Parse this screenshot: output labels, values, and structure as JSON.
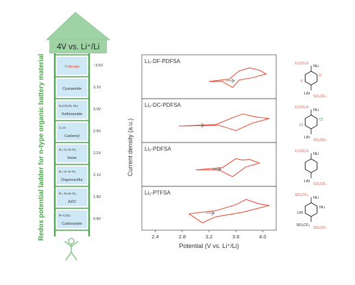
{
  "ladder": {
    "title": "4V vs. Li⁺/Li",
    "side_label": "Redox potential ladder for n-type organic battery material",
    "rungs": [
      {
        "name": "Triflimide",
        "potential": "~3.6V",
        "chem": "",
        "highlight": true
      },
      {
        "name": "Cyanamide",
        "potential": "3.1V",
        "chem": "",
        "highlight": false
      },
      {
        "name": "Sulfonamide",
        "potential": "3.0V",
        "chem": "N₂CO₂R₁ NLi",
        "highlight": false
      },
      {
        "name": "Carbonyl",
        "potential": "2.5V",
        "chem": "C=O",
        "highlight": false
      },
      {
        "name": "Imine",
        "potential": "2.2V",
        "chem": "R₁–C=N–R₂",
        "highlight": false
      },
      {
        "name": "Organosulfur",
        "potential": "2.1V",
        "chem": "R₁–S–S–R₂",
        "highlight": false
      },
      {
        "name": "AZO",
        "potential": "1.8V",
        "chem": "R₁–N=N–R₂",
        "highlight": false
      },
      {
        "name": "Carboxylate",
        "potential": "0.8V",
        "chem": "R–COLi",
        "highlight": false
      }
    ]
  },
  "chart": {
    "ylabel": "Current density (a.u.)",
    "xlabel": "Potential (V vs. Li⁺/Li)"
  },
  "chart_data": {
    "type": "line",
    "xlabel": "Potential (V vs. Li⁺/Li)",
    "ylabel": "Current density (a.u.)",
    "xlim": [
      2.2,
      4.2
    ],
    "xticks": [
      2.4,
      2.8,
      3.2,
      3.6,
      4.0
    ],
    "panels": [
      {
        "name": "Li₂-DF-PDFSA",
        "anodic": [
          [
            3.2,
            0.05
          ],
          [
            3.5,
            0.2
          ],
          [
            3.65,
            0.75
          ],
          [
            3.8,
            0.95
          ],
          [
            3.95,
            0.8
          ],
          [
            4.05,
            0.55
          ]
        ],
        "cathodic": [
          [
            4.05,
            0.55
          ],
          [
            3.85,
            0.3
          ],
          [
            3.65,
            0.15
          ],
          [
            3.55,
            -0.35
          ],
          [
            3.4,
            0.05
          ],
          [
            3.2,
            0.05
          ]
        ]
      },
      {
        "name": "Li₂-DC-PDFSA",
        "anodic": [
          [
            2.75,
            0.0
          ],
          [
            3.3,
            0.1
          ],
          [
            3.55,
            0.55
          ],
          [
            3.7,
            0.8
          ],
          [
            3.9,
            0.6
          ],
          [
            4.1,
            0.5
          ]
        ],
        "cathodic": [
          [
            4.1,
            0.5
          ],
          [
            3.85,
            0.2
          ],
          [
            3.6,
            -0.3
          ],
          [
            3.35,
            0.05
          ],
          [
            2.75,
            0.0
          ]
        ]
      },
      {
        "name": "Li₂-PDFSA",
        "anodic": [
          [
            3.0,
            0.0
          ],
          [
            3.4,
            0.15
          ],
          [
            3.6,
            0.75
          ],
          [
            3.7,
            0.65
          ],
          [
            3.8,
            0.7
          ],
          [
            3.95,
            0.45
          ]
        ],
        "cathodic": [
          [
            3.95,
            0.45
          ],
          [
            3.75,
            0.2
          ],
          [
            3.55,
            -0.45
          ],
          [
            3.35,
            0.0
          ],
          [
            3.0,
            0.0
          ]
        ]
      },
      {
        "name": "Li₂-PTFSA",
        "anodic": [
          [
            2.9,
            0.0
          ],
          [
            3.3,
            0.2
          ],
          [
            3.6,
            0.6
          ],
          [
            3.75,
            0.95
          ],
          [
            3.95,
            0.65
          ],
          [
            4.1,
            0.55
          ]
        ],
        "cathodic": [
          [
            4.1,
            0.55
          ],
          [
            3.7,
            0.1
          ],
          [
            3.3,
            -0.2
          ],
          [
            3.1,
            -0.6
          ],
          [
            2.9,
            0.0
          ]
        ]
      }
    ]
  },
  "structures": [
    {
      "name": "structure-df-pdfsa",
      "top": "F₃CO₂S",
      "top_right": "NLi",
      "left": "F",
      "right": "F",
      "bottom": "LiN",
      "bottom_right": "SO₂CF₃"
    },
    {
      "name": "structure-dc-pdfsa",
      "top": "F₃CO₂S",
      "top_right": "NLi",
      "left": "Cl",
      "right": "Cl",
      "bottom": "LiN",
      "bottom_right": "SO₂CF₃"
    },
    {
      "name": "structure-pdfsa",
      "top": "F₃CO₂S",
      "top_right": "NLi",
      "left": "",
      "right": "",
      "bottom": "LiN",
      "bottom_right": "SO₂CF₃"
    },
    {
      "name": "structure-ptfsa",
      "top": "SO₂CF₃",
      "top_right": "NLi",
      "left": "LiN",
      "right": "NLi",
      "bottom": "SO₂CF₃",
      "bottom_right": "SO₂CF₃"
    }
  ],
  "colors": {
    "ladder_green": "#4da64d",
    "arrow_fill": "#9fd3a6",
    "ladder_box": "#cfe8f5",
    "curve": "#e8503a",
    "highlight": "#e8503a",
    "text": "#333333",
    "fluoro": "#e8503a",
    "chloro": "#2e9a3a",
    "structure_accent": "#e8503a"
  }
}
